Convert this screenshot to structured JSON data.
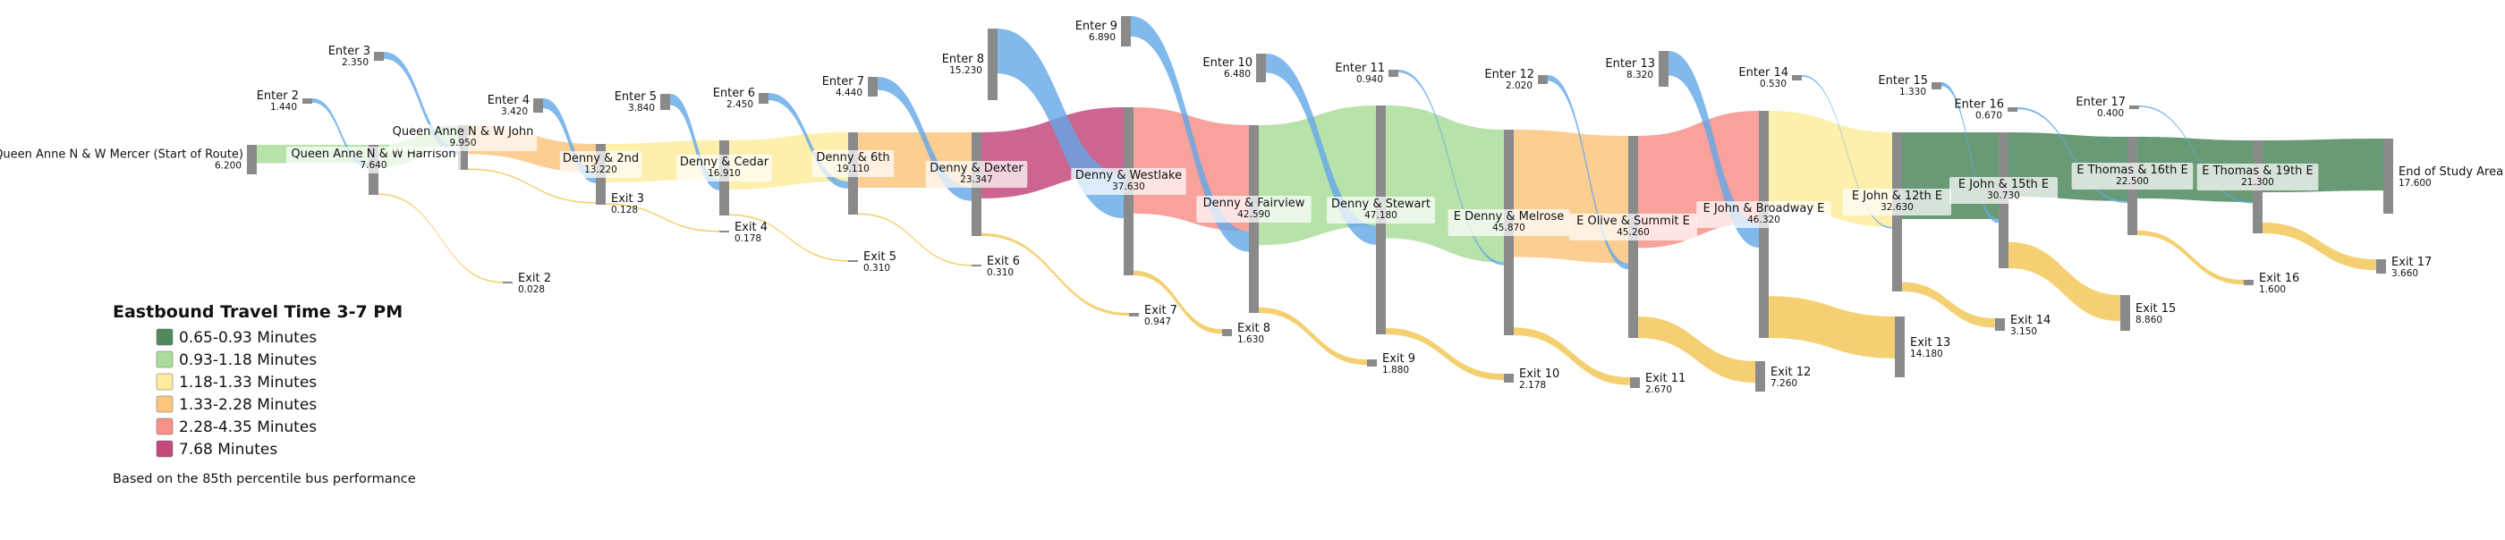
{
  "nodes": [
    {
      "id": "start",
      "name": "Queen Anne N & W Mercer (Start of Route)",
      "value": "6.200",
      "kind": "stop"
    },
    {
      "id": "s1",
      "name": "Queen Anne N & W Harrison",
      "value": "7.640",
      "kind": "stop"
    },
    {
      "id": "s2",
      "name": "Queen Anne N & W John",
      "value": "9.950",
      "kind": "stop"
    },
    {
      "id": "s3",
      "name": "Denny & 2nd",
      "value": "13.220",
      "kind": "stop"
    },
    {
      "id": "s4",
      "name": "Denny & Cedar",
      "value": "16.910",
      "kind": "stop"
    },
    {
      "id": "s5",
      "name": "Denny & 6th",
      "value": "19.110",
      "kind": "stop"
    },
    {
      "id": "s6",
      "name": "Denny & Dexter",
      "value": "23.347",
      "kind": "stop"
    },
    {
      "id": "s7",
      "name": "Denny & Westlake",
      "value": "37.630",
      "kind": "stop"
    },
    {
      "id": "s8",
      "name": "Denny & Fairview",
      "value": "42.590",
      "kind": "stop"
    },
    {
      "id": "s9",
      "name": "Denny & Stewart",
      "value": "47.180",
      "kind": "stop"
    },
    {
      "id": "s10",
      "name": "E Denny & Melrose",
      "value": "45.870",
      "kind": "stop"
    },
    {
      "id": "s11",
      "name": "E Olive & Summit E",
      "value": "45.260",
      "kind": "stop"
    },
    {
      "id": "s12",
      "name": "E John & Broadway E",
      "value": "46.320",
      "kind": "stop"
    },
    {
      "id": "s13",
      "name": "E John & 12th E",
      "value": "32.630",
      "kind": "stop"
    },
    {
      "id": "s14",
      "name": "E John & 15th E",
      "value": "30.730",
      "kind": "stop"
    },
    {
      "id": "s15",
      "name": "E Thomas & 16th E",
      "value": "22.500",
      "kind": "stop"
    },
    {
      "id": "s16",
      "name": "E Thomas & 19th E",
      "value": "21.300",
      "kind": "stop"
    },
    {
      "id": "end",
      "name": "End of Study Area",
      "value": "17.600",
      "kind": "end"
    },
    {
      "id": "e2",
      "name": "Enter 2",
      "value": "1.440",
      "kind": "enter"
    },
    {
      "id": "e3",
      "name": "Enter 3",
      "value": "2.350",
      "kind": "enter"
    },
    {
      "id": "e4",
      "name": "Enter 4",
      "value": "3.420",
      "kind": "enter"
    },
    {
      "id": "e5",
      "name": "Enter 5",
      "value": "3.840",
      "kind": "enter"
    },
    {
      "id": "e6",
      "name": "Enter 6",
      "value": "2.450",
      "kind": "enter"
    },
    {
      "id": "e7",
      "name": "Enter 7",
      "value": "4.440",
      "kind": "enter"
    },
    {
      "id": "e8",
      "name": "Enter 8",
      "value": "15.230",
      "kind": "enter"
    },
    {
      "id": "e9",
      "name": "Enter 9",
      "value": "6.890",
      "kind": "enter"
    },
    {
      "id": "e10",
      "name": "Enter 10",
      "value": "6.480",
      "kind": "enter"
    },
    {
      "id": "e11",
      "name": "Enter 11",
      "value": "0.940",
      "kind": "enter"
    },
    {
      "id": "e12",
      "name": "Enter 12",
      "value": "2.020",
      "kind": "enter"
    },
    {
      "id": "e13",
      "name": "Enter 13",
      "value": "8.320",
      "kind": "enter"
    },
    {
      "id": "e14",
      "name": "Enter 14",
      "value": "0.530",
      "kind": "enter"
    },
    {
      "id": "e15",
      "name": "Enter 15",
      "value": "1.330",
      "kind": "enter"
    },
    {
      "id": "e16",
      "name": "Enter 16",
      "value": "0.670",
      "kind": "enter"
    },
    {
      "id": "e17",
      "name": "Enter 17",
      "value": "0.400",
      "kind": "enter"
    },
    {
      "id": "x2",
      "name": "Exit 2",
      "value": "0.028",
      "kind": "exit"
    },
    {
      "id": "x3",
      "name": "Exit 3",
      "value": "0.128",
      "kind": "exit"
    },
    {
      "id": "x4",
      "name": "Exit 4",
      "value": "0.178",
      "kind": "exit"
    },
    {
      "id": "x5",
      "name": "Exit 5",
      "value": "0.310",
      "kind": "exit"
    },
    {
      "id": "x6",
      "name": "Exit 6",
      "value": "0.310",
      "kind": "exit"
    },
    {
      "id": "x7",
      "name": "Exit 7",
      "value": "0.947",
      "kind": "exit"
    },
    {
      "id": "x8",
      "name": "Exit 8",
      "value": "1.630",
      "kind": "exit"
    },
    {
      "id": "x9",
      "name": "Exit 9",
      "value": "1.880",
      "kind": "exit"
    },
    {
      "id": "x10",
      "name": "Exit 10",
      "value": "2.178",
      "kind": "exit"
    },
    {
      "id": "x11",
      "name": "Exit 11",
      "value": "2.670",
      "kind": "exit"
    },
    {
      "id": "x12",
      "name": "Exit 12",
      "value": "7.260",
      "kind": "exit"
    },
    {
      "id": "x13",
      "name": "Exit 13",
      "value": "14.180",
      "kind": "exit"
    },
    {
      "id": "x14",
      "name": "Exit 14",
      "value": "3.150",
      "kind": "exit"
    },
    {
      "id": "x15",
      "name": "Exit 15",
      "value": "8.860",
      "kind": "exit"
    },
    {
      "id": "x16",
      "name": "Exit 16",
      "value": "1.600",
      "kind": "exit"
    },
    {
      "id": "x17",
      "name": "Exit 17",
      "value": "3.660",
      "kind": "exit"
    }
  ],
  "links": [
    {
      "source": "start",
      "target": "s1",
      "value": 6.2,
      "color_class": 1
    },
    {
      "source": "e2",
      "target": "s1",
      "value": 1.44,
      "color_class": 6
    },
    {
      "source": "s1",
      "target": "s2",
      "value": 7.61,
      "color_class": 1
    },
    {
      "source": "s1",
      "target": "x2",
      "value": 0.028,
      "color_class": 7
    },
    {
      "source": "e3",
      "target": "s2",
      "value": 2.35,
      "color_class": 6
    },
    {
      "source": "s2",
      "target": "s3",
      "value": 9.82,
      "color_class": 3
    },
    {
      "source": "s2",
      "target": "x3",
      "value": 0.128,
      "color_class": 7
    },
    {
      "source": "e4",
      "target": "s3",
      "value": 3.42,
      "color_class": 6
    },
    {
      "source": "s3",
      "target": "s4",
      "value": 13.04,
      "color_class": 2
    },
    {
      "source": "s3",
      "target": "x4",
      "value": 0.178,
      "color_class": 7
    },
    {
      "source": "e5",
      "target": "s4",
      "value": 3.84,
      "color_class": 6
    },
    {
      "source": "s4",
      "target": "s5",
      "value": 16.6,
      "color_class": 2
    },
    {
      "source": "s4",
      "target": "x5",
      "value": 0.31,
      "color_class": 7
    },
    {
      "source": "e6",
      "target": "s5",
      "value": 2.45,
      "color_class": 6
    },
    {
      "source": "s5",
      "target": "s6",
      "value": 18.8,
      "color_class": 3
    },
    {
      "source": "s5",
      "target": "x6",
      "value": 0.31,
      "color_class": 7
    },
    {
      "source": "e7",
      "target": "s6",
      "value": 4.44,
      "color_class": 6
    },
    {
      "source": "s6",
      "target": "s7",
      "value": 22.4,
      "color_class": 5
    },
    {
      "source": "s6",
      "target": "x7",
      "value": 0.947,
      "color_class": 7
    },
    {
      "source": "e8",
      "target": "s7",
      "value": 15.23,
      "color_class": 6
    },
    {
      "source": "s7",
      "target": "s8",
      "value": 36.0,
      "color_class": 4
    },
    {
      "source": "s7",
      "target": "x8",
      "value": 1.63,
      "color_class": 7
    },
    {
      "source": "e9",
      "target": "s8",
      "value": 6.89,
      "color_class": 6
    },
    {
      "source": "s8",
      "target": "s9",
      "value": 40.7,
      "color_class": 1
    },
    {
      "source": "s8",
      "target": "x9",
      "value": 1.88,
      "color_class": 7
    },
    {
      "source": "e10",
      "target": "s9",
      "value": 6.48,
      "color_class": 6
    },
    {
      "source": "s9",
      "target": "s10",
      "value": 45.0,
      "color_class": 1
    },
    {
      "source": "s9",
      "target": "x10",
      "value": 2.178,
      "color_class": 7
    },
    {
      "source": "e11",
      "target": "s10",
      "value": 0.94,
      "color_class": 6
    },
    {
      "source": "s10",
      "target": "s11",
      "value": 43.2,
      "color_class": 3
    },
    {
      "source": "s10",
      "target": "x11",
      "value": 2.67,
      "color_class": 7
    },
    {
      "source": "e12",
      "target": "s11",
      "value": 2.02,
      "color_class": 6
    },
    {
      "source": "s11",
      "target": "s12",
      "value": 38.0,
      "color_class": 4
    },
    {
      "source": "s11",
      "target": "x12",
      "value": 7.26,
      "color_class": 7
    },
    {
      "source": "e13",
      "target": "s12",
      "value": 8.32,
      "color_class": 6
    },
    {
      "source": "s12",
      "target": "s13",
      "value": 32.1,
      "color_class": 2
    },
    {
      "source": "s12",
      "target": "x13",
      "value": 14.18,
      "color_class": 7
    },
    {
      "source": "e14",
      "target": "s13",
      "value": 0.53,
      "color_class": 6
    },
    {
      "source": "s13",
      "target": "s14",
      "value": 29.4,
      "color_class": 0
    },
    {
      "source": "s13",
      "target": "x14",
      "value": 3.15,
      "color_class": 7
    },
    {
      "source": "e15",
      "target": "s14",
      "value": 1.33,
      "color_class": 6
    },
    {
      "source": "s14",
      "target": "s15",
      "value": 21.8,
      "color_class": 0
    },
    {
      "source": "s14",
      "target": "x15",
      "value": 8.86,
      "color_class": 7
    },
    {
      "source": "e16",
      "target": "s15",
      "value": 0.67,
      "color_class": 6
    },
    {
      "source": "s15",
      "target": "s16",
      "value": 20.9,
      "color_class": 0
    },
    {
      "source": "s15",
      "target": "x16",
      "value": 1.6,
      "color_class": 7
    },
    {
      "source": "e17",
      "target": "s16",
      "value": 0.4,
      "color_class": 6
    },
    {
      "source": "s16",
      "target": "end",
      "value": 17.6,
      "color_class": 0
    },
    {
      "source": "s16",
      "target": "x17",
      "value": 3.66,
      "color_class": 7
    }
  ],
  "legend": {
    "title": "Eastbound Travel Time 3-7 PM",
    "items": [
      {
        "label": "0.65-0.93 Minutes",
        "color": "#4e8a5d"
      },
      {
        "label": "0.93-1.18 Minutes",
        "color": "#aadd9b"
      },
      {
        "label": "1.18-1.33 Minutes",
        "color": "#fdec9d"
      },
      {
        "label": "1.33-2.28 Minutes",
        "color": "#fdc57f"
      },
      {
        "label": "2.28-4.35 Minutes",
        "color": "#f8918a"
      },
      {
        "label": "7.68 Minutes",
        "color": "#c44a7e"
      }
    ]
  },
  "note": "Based on the 85th percentile bus performance",
  "colors": {
    "node_bar": "#8a8a8a",
    "enter_flow": "#62a8e8",
    "exit_flow": "#f3c44f",
    "background": "#ffffff"
  }
}
